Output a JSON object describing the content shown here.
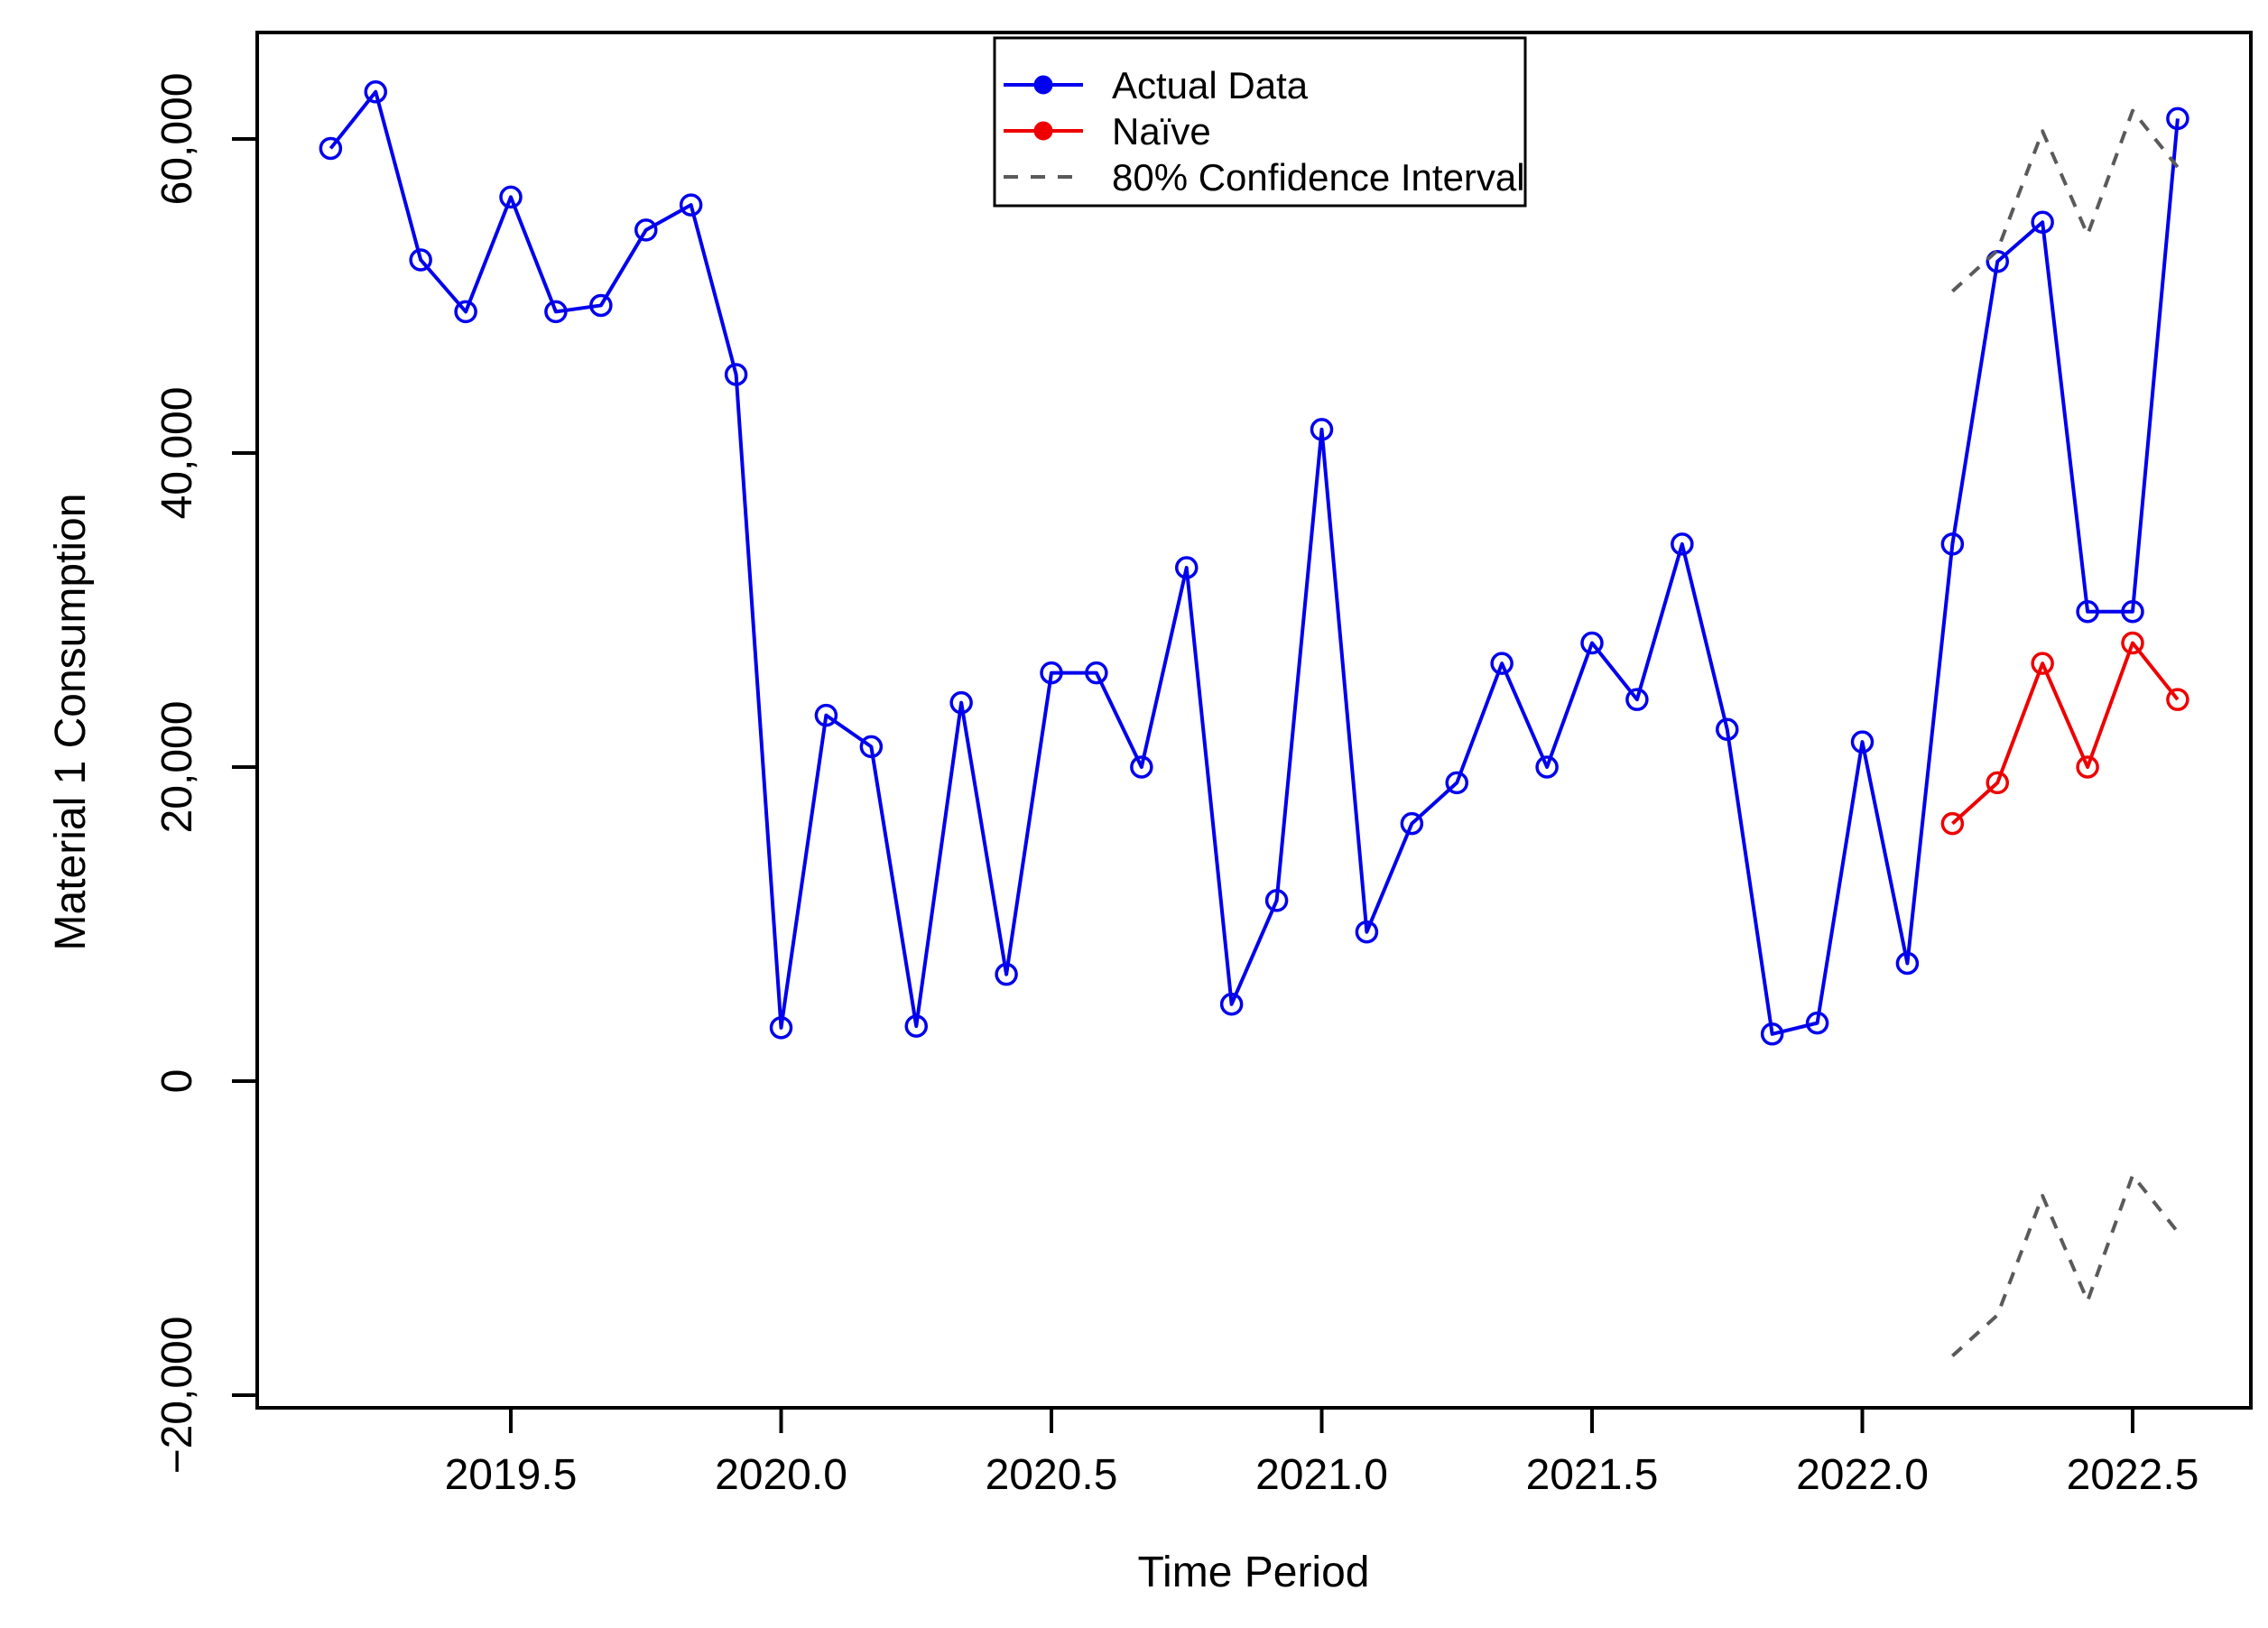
{
  "figure": {
    "background": "#ffffff",
    "border_color": "#000000"
  },
  "chart_data": {
    "type": "line",
    "title": "",
    "xlabel": "Time Period",
    "ylabel": "Material 1 Consumption",
    "grid": false,
    "xlim": [
      2019.03,
      2022.72
    ],
    "ylim": [
      -20800,
      66800
    ],
    "x_ticks": [
      2019.5,
      2020.0,
      2020.5,
      2021.0,
      2021.5,
      2022.0,
      2022.5
    ],
    "x_tick_labels": [
      "2019.5",
      "2020.0",
      "2020.5",
      "2021.0",
      "2021.5",
      "2022.0",
      "2022.5"
    ],
    "y_ticks": [
      60000,
      40000,
      20000,
      0,
      -20000
    ],
    "y_tick_labels": [
      "60,000",
      "40,000",
      "20,000",
      "0",
      "−20,000"
    ],
    "legend": {
      "position": "top-center",
      "entries": [
        {
          "label": "Actual Data",
          "color": "#0000ee",
          "line_style": "solid",
          "marker": "filled-circle"
        },
        {
          "label": "Naïve",
          "color": "#ee0000",
          "line_style": "solid",
          "marker": "filled-circle"
        },
        {
          "label": "80% Confidence Interval",
          "color": "#5a5a5a",
          "line_style": "dashed",
          "marker": "none"
        }
      ]
    },
    "series": [
      {
        "name": "Actual Data",
        "color": "#0000ee",
        "line_style": "solid",
        "marker": "open-circle",
        "x": [
          2019.1667,
          2019.25,
          2019.3333,
          2019.4167,
          2019.5,
          2019.5833,
          2019.6667,
          2019.75,
          2019.8333,
          2019.9167,
          2020.0,
          2020.0833,
          2020.1667,
          2020.25,
          2020.3333,
          2020.4167,
          2020.5,
          2020.5833,
          2020.6667,
          2020.75,
          2020.8333,
          2020.9167,
          2021.0,
          2021.0833,
          2021.1667,
          2021.25,
          2021.3333,
          2021.4167,
          2021.5,
          2021.5833,
          2021.6667,
          2021.75,
          2021.8333,
          2021.9167,
          2022.0,
          2022.0833,
          2022.1667,
          2022.25,
          2022.3333,
          2022.4167,
          2022.5,
          2022.5833
        ],
        "y": [
          59400,
          63000,
          52300,
          49000,
          56300,
          49000,
          49400,
          54200,
          55800,
          45000,
          3400,
          23300,
          21300,
          3500,
          24100,
          6800,
          26000,
          26000,
          20000,
          32700,
          4900,
          11500,
          41500,
          9500,
          16400,
          19000,
          26600,
          20000,
          27900,
          24300,
          34200,
          22400,
          3000,
          3700,
          21600,
          7500,
          34200,
          52200,
          54700,
          29900,
          29900,
          61300
        ]
      },
      {
        "name": "Naïve",
        "color": "#ee0000",
        "line_style": "solid",
        "marker": "open-circle",
        "x": [
          2022.1667,
          2022.25,
          2022.3333,
          2022.4167,
          2022.5,
          2022.5833
        ],
        "y": [
          16400,
          19000,
          26600,
          20000,
          27900,
          24300
        ]
      },
      {
        "name": "80% Confidence Interval (upper)",
        "color": "#5a5a5a",
        "line_style": "dashed",
        "marker": "none",
        "x": [
          2022.1667,
          2022.25,
          2022.3333,
          2022.4167,
          2022.5,
          2022.5833
        ],
        "y": [
          50300,
          52900,
          60500,
          53900,
          61800,
          58200
        ]
      },
      {
        "name": "80% Confidence Interval (lower)",
        "color": "#5a5a5a",
        "line_style": "dashed",
        "marker": "none",
        "x": [
          2022.1667,
          2022.25,
          2022.3333,
          2022.4167,
          2022.5,
          2022.5833
        ],
        "y": [
          -17500,
          -14900,
          -7300,
          -14000,
          -6000,
          -9600
        ]
      }
    ]
  }
}
